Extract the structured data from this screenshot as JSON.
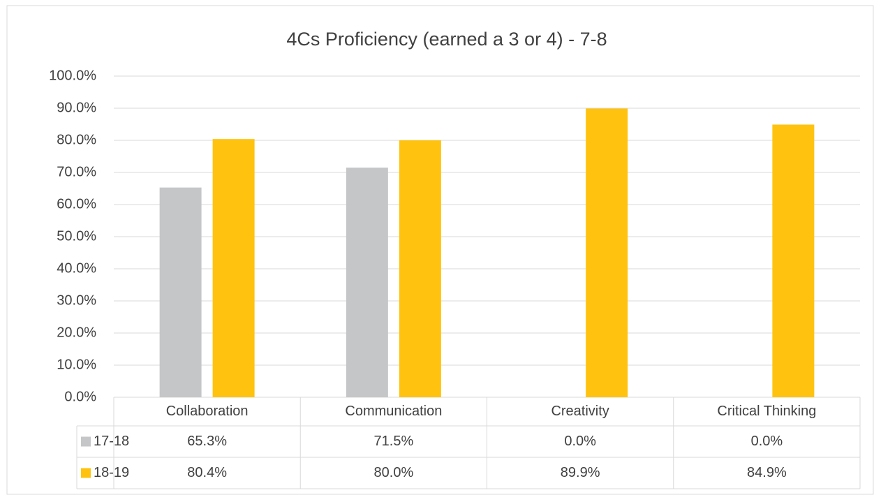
{
  "chart_data": {
    "type": "bar",
    "title": "4Cs Proficiency (earned a 3 or 4) - 7-8",
    "categories": [
      "Collaboration",
      "Communication",
      "Creativity",
      "Critical Thinking"
    ],
    "series": [
      {
        "name": "17-18",
        "color": "#c5c6c8",
        "values": [
          65.3,
          71.5,
          0,
          0
        ],
        "value_labels": [
          "65.3%",
          "71.5%",
          "0.0%",
          "0.0%"
        ]
      },
      {
        "name": "18-19",
        "color": "#ffc30f",
        "values": [
          80.4,
          80.0,
          89.9,
          84.9
        ],
        "value_labels": [
          "80.4%",
          "80.0%",
          "89.9%",
          "84.9%"
        ]
      }
    ],
    "ylim": [
      0,
      100
    ],
    "yticks": [
      {
        "value": 0,
        "label": "0.0%"
      },
      {
        "value": 10,
        "label": "10.0%"
      },
      {
        "value": 20,
        "label": "20.0%"
      },
      {
        "value": 30,
        "label": "30.0%"
      },
      {
        "value": 40,
        "label": "40.0%"
      },
      {
        "value": 50,
        "label": "50.0%"
      },
      {
        "value": 60,
        "label": "60.0%"
      },
      {
        "value": 70,
        "label": "70.0%"
      },
      {
        "value": 80,
        "label": "80.0%"
      },
      {
        "value": 90,
        "label": "90.0%"
      },
      {
        "value": 100,
        "label": "100.0%"
      }
    ],
    "grid": true
  }
}
